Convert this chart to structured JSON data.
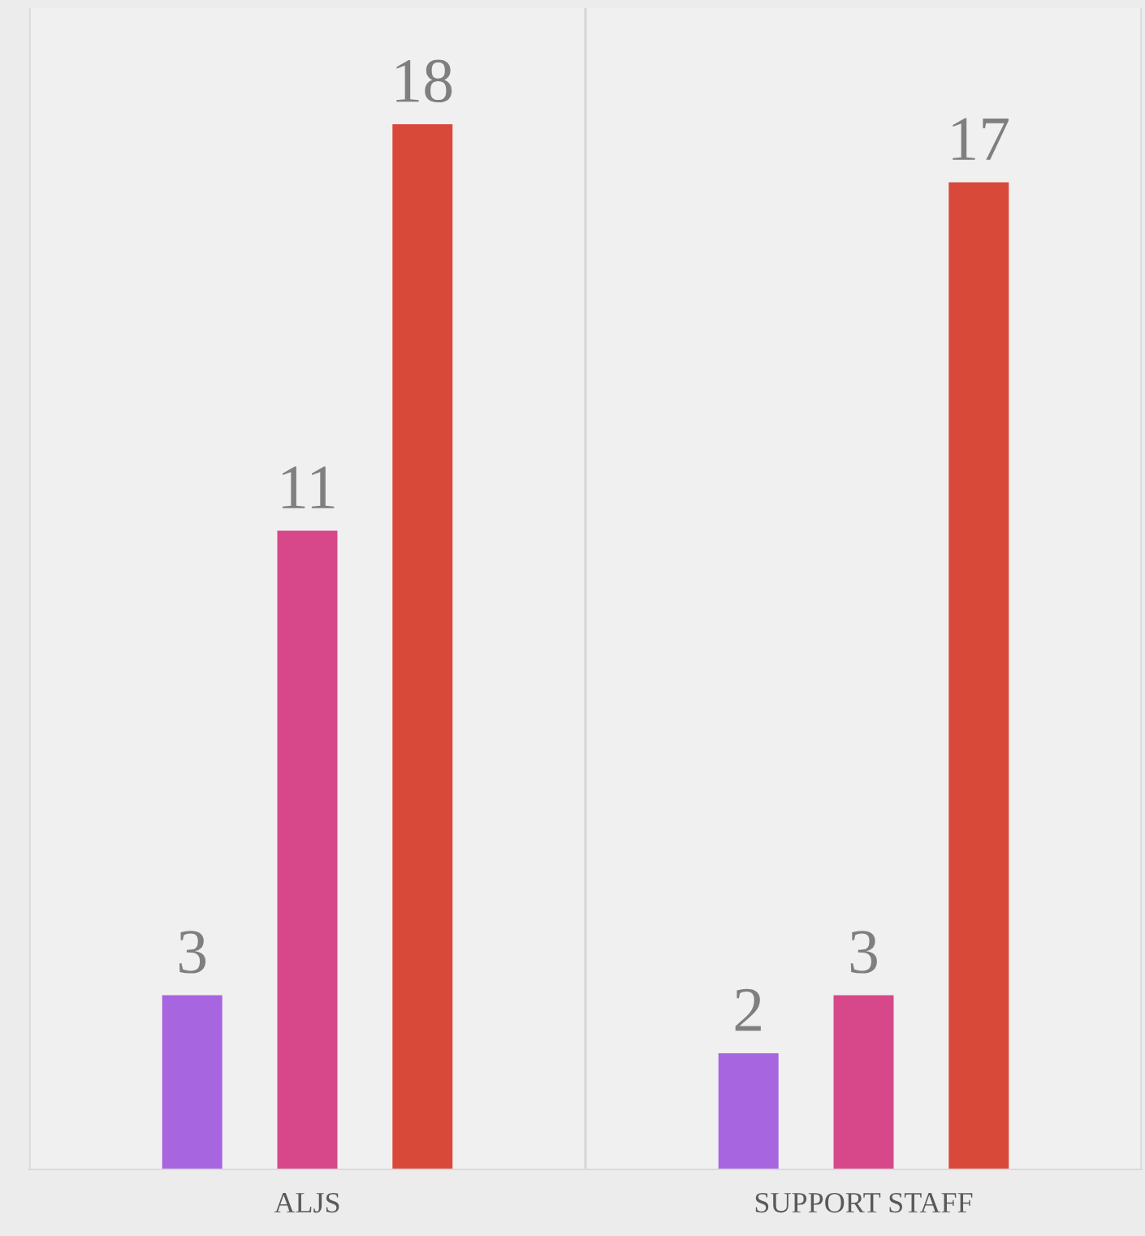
{
  "chart_data": {
    "type": "bar",
    "categories": [
      "ALJS",
      "SUPPORT STAFF"
    ],
    "series": [
      {
        "color": "#a865e0",
        "values": [
          3,
          2
        ]
      },
      {
        "color": "#d64889",
        "values": [
          11,
          3
        ]
      },
      {
        "color": "#d9493a",
        "values": [
          18,
          17
        ]
      }
    ],
    "ylim": [
      0,
      20
    ],
    "data_labels": true,
    "grid": "x",
    "tick_labels": "x"
  }
}
